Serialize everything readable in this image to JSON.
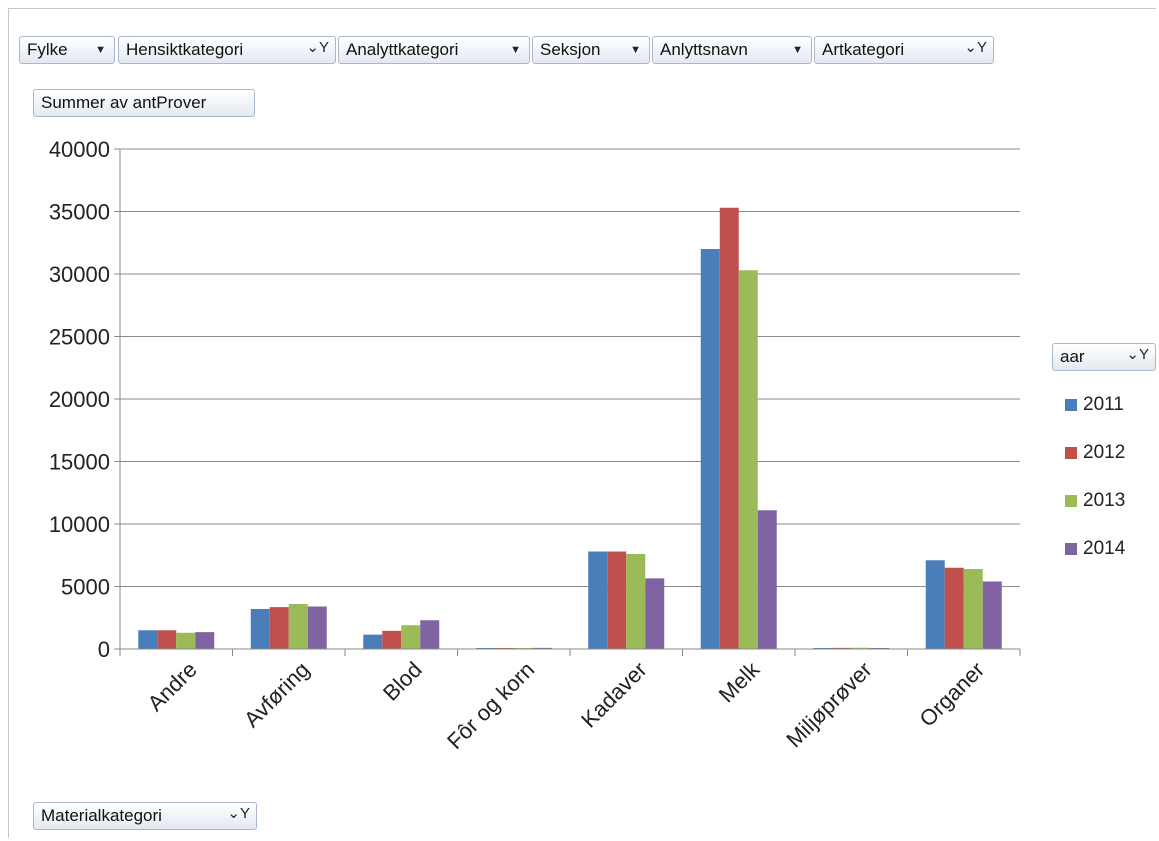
{
  "filters": {
    "fylke": "Fylke",
    "hensiktkategori": "Hensiktkategori",
    "analyttkategori": "Analyttkategori",
    "seksjon": "Seksjon",
    "anlyttsnavn": "Anlyttsnavn",
    "artkategori": "Artkategori",
    "value_field": "Summer av antProver",
    "axis_field": "Materialkategori",
    "legend_field": "aar"
  },
  "chart_data": {
    "type": "bar",
    "categories": [
      "Andre",
      "Avføring",
      "Blod",
      "Fôr og korn",
      "Kadaver",
      "Melk",
      "Miljøprøver",
      "Organer"
    ],
    "series": [
      {
        "name": "2011",
        "color": "#4a7ebb",
        "values": [
          1500,
          3200,
          1150,
          40,
          7800,
          32000,
          80,
          7100
        ]
      },
      {
        "name": "2012",
        "color": "#c0504d",
        "values": [
          1500,
          3350,
          1450,
          40,
          7800,
          35300,
          90,
          6500
        ]
      },
      {
        "name": "2013",
        "color": "#9bbb59",
        "values": [
          1300,
          3600,
          1900,
          70,
          7600,
          30300,
          100,
          6400
        ]
      },
      {
        "name": "2014",
        "color": "#8064a2",
        "values": [
          1350,
          3400,
          2300,
          90,
          5650,
          11100,
          80,
          5400
        ]
      }
    ],
    "yticks": [
      "0",
      "5000",
      "10000",
      "15000",
      "20000",
      "25000",
      "30000",
      "35000",
      "40000"
    ],
    "ylim": [
      0,
      40000
    ],
    "grid": true,
    "legend_position": "right"
  }
}
